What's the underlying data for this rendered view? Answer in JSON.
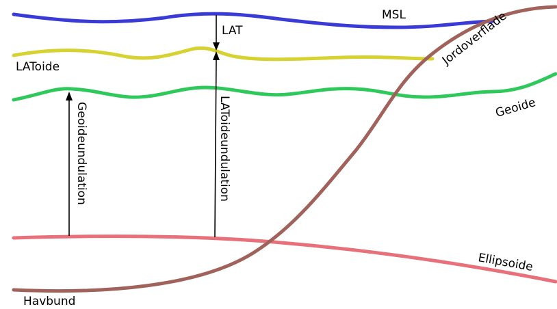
{
  "surfaces": {
    "msl": {
      "label": "MSL",
      "color": "#3a3ad6"
    },
    "latoide": {
      "label": "LAToide",
      "color": "#d6d232"
    },
    "geoide": {
      "label": "Geoide",
      "color": "#2ec95a"
    },
    "ellipsoide": {
      "label": "Ellipsoide",
      "color": "#e8707a"
    },
    "terrain": {
      "label_top": "Jordoverflade",
      "label_bottom": "Havbund",
      "color": "#a0625a"
    }
  },
  "measurements": {
    "lat": {
      "label": "LAT"
    },
    "geoid_undulation": {
      "label": "Geoideundulation"
    },
    "latoid_undulation": {
      "label": "LAToideundulation"
    }
  }
}
